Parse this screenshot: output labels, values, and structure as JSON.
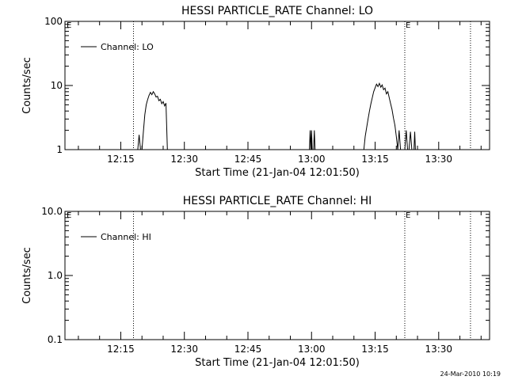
{
  "chart_data": [
    {
      "type": "line",
      "title": "HESSI PARTICLE_RATE Channel: LO",
      "xlabel": "Start Time (21-Jan-04 12:01:50)",
      "ylabel": "Counts/sec",
      "yscale": "log",
      "ylim": [
        1,
        100
      ],
      "y_ticks": [
        1,
        10,
        100
      ],
      "y_tick_labels": [
        "1",
        "10",
        "100"
      ],
      "x_ticks": [
        "12:15",
        "12:30",
        "12:45",
        "13:00",
        "13:15",
        "13:30"
      ],
      "legend": {
        "label": "Channel: LO",
        "position": "top-left"
      },
      "markers": [
        {
          "time": "12:18:00",
          "label": ""
        },
        {
          "time": "13:22:00",
          "label": "E"
        },
        {
          "time": "13:37:30",
          "label": ""
        }
      ],
      "start_marker": "E",
      "series": [
        {
          "name": "Channel: LO",
          "segments": [
            [
              [
                "12:19:00",
                1
              ],
              [
                "12:19:20",
                1.7
              ],
              [
                "12:19:40",
                1
              ],
              [
                "12:20:00",
                1
              ],
              [
                "12:20:20",
                1.9
              ],
              [
                "12:20:40",
                3.5
              ],
              [
                "12:21:00",
                5
              ],
              [
                "12:21:20",
                6
              ],
              [
                "12:21:40",
                7
              ],
              [
                "12:22:00",
                7.8
              ],
              [
                "12:22:20",
                7.2
              ],
              [
                "12:22:40",
                8
              ],
              [
                "12:23:00",
                7.4
              ],
              [
                "12:23:20",
                6.6
              ],
              [
                "12:23:40",
                6.8
              ],
              [
                "12:24:00",
                5.8
              ],
              [
                "12:24:20",
                6.1
              ],
              [
                "12:24:40",
                5.2
              ],
              [
                "12:25:00",
                5.6
              ],
              [
                "12:25:20",
                4.8
              ],
              [
                "12:25:40",
                5.3
              ],
              [
                "12:26:00",
                1
              ]
            ],
            [
              [
                "12:59:30",
                1
              ],
              [
                "12:59:40",
                2
              ],
              [
                "12:59:50",
                1
              ],
              [
                "13:00:00",
                2
              ],
              [
                "13:00:10",
                1
              ],
              [
                "13:00:30",
                1
              ],
              [
                "13:00:40",
                2
              ],
              [
                "13:00:50",
                1
              ]
            ],
            [
              [
                "13:12:20",
                1
              ],
              [
                "13:12:40",
                1.6
              ],
              [
                "13:13:00",
                2.2
              ],
              [
                "13:13:20",
                3
              ],
              [
                "13:13:40",
                4
              ],
              [
                "13:14:00",
                5.2
              ],
              [
                "13:14:20",
                6.5
              ],
              [
                "13:14:40",
                8
              ],
              [
                "13:15:00",
                9.2
              ],
              [
                "13:15:20",
                10.5
              ],
              [
                "13:15:40",
                9.6
              ],
              [
                "13:16:00",
                10.8
              ],
              [
                "13:16:20",
                9.4
              ],
              [
                "13:16:40",
                10.2
              ],
              [
                "13:17:00",
                8.6
              ],
              [
                "13:17:20",
                9.1
              ],
              [
                "13:17:40",
                7.4
              ],
              [
                "13:18:00",
                8
              ],
              [
                "13:18:20",
                6.4
              ],
              [
                "13:18:40",
                5.2
              ],
              [
                "13:19:00",
                4.2
              ],
              [
                "13:19:20",
                3.1
              ],
              [
                "13:19:40",
                2.4
              ],
              [
                "13:20:00",
                1.6
              ],
              [
                "13:20:20",
                1
              ],
              [
                "13:20:40",
                2
              ],
              [
                "13:21:00",
                1
              ]
            ],
            [
              [
                "13:22:00",
                1
              ],
              [
                "13:22:20",
                2
              ],
              [
                "13:22:40",
                1
              ],
              [
                "13:23:00",
                1
              ],
              [
                "13:23:20",
                1.9
              ],
              [
                "13:23:40",
                1
              ]
            ],
            [
              [
                "13:24:10",
                1
              ],
              [
                "13:24:20",
                1.9
              ],
              [
                "13:24:30",
                1
              ]
            ]
          ]
        }
      ]
    },
    {
      "type": "line",
      "title": "HESSI PARTICLE_RATE Channel: HI",
      "xlabel": "Start Time (21-Jan-04 12:01:50)",
      "ylabel": "Counts/sec",
      "yscale": "log",
      "ylim": [
        0.1,
        10
      ],
      "y_ticks": [
        0.1,
        1,
        10
      ],
      "y_tick_labels": [
        "0.1",
        "1.0",
        "10.0"
      ],
      "x_ticks": [
        "12:15",
        "12:30",
        "12:45",
        "13:00",
        "13:15",
        "13:30"
      ],
      "legend": {
        "label": "Channel: HI",
        "position": "top-left"
      },
      "markers": [
        {
          "time": "12:18:00",
          "label": ""
        },
        {
          "time": "13:22:00",
          "label": "E"
        },
        {
          "time": "13:37:30",
          "label": ""
        }
      ],
      "start_marker": "E",
      "series": [
        {
          "name": "Channel: HI",
          "segments": []
        }
      ]
    }
  ],
  "footer": {
    "timestamp": "24-Mar-2010 10:19"
  }
}
